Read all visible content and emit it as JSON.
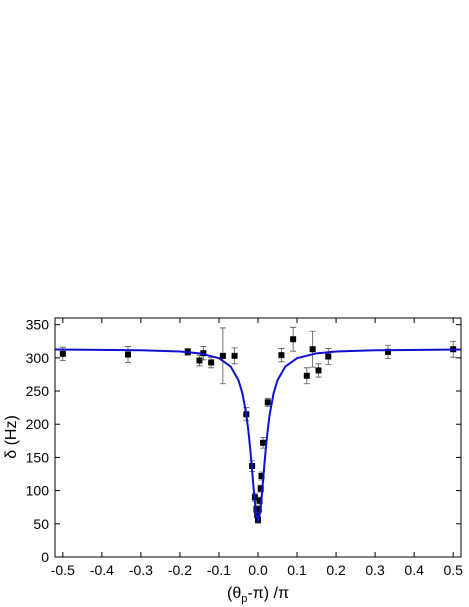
{
  "chart_data": {
    "type": "scatter",
    "xlabel": {
      "main": "(θ",
      "sub": "p",
      "rest": "-π) /π"
    },
    "ylabel": "δ (Hz)",
    "xlim": [
      -0.52,
      0.52
    ],
    "ylim": [
      0,
      360
    ],
    "xticks": [
      -0.5,
      -0.4,
      -0.3,
      -0.2,
      -0.1,
      {
        "value": 0,
        "label": "0.0"
      },
      0.1,
      0.2,
      0.3,
      0.4,
      0.5
    ],
    "yticks": [
      0,
      50,
      100,
      150,
      200,
      250,
      300,
      350
    ],
    "series": [
      {
        "type": "scatter",
        "color": "#000000",
        "x": [
          -0.5,
          -0.333,
          -0.18,
          -0.15,
          -0.14,
          -0.12,
          -0.09,
          -0.06,
          -0.03,
          -0.015,
          -0.008,
          -0.004,
          -0.002,
          0,
          0.002,
          0.004,
          0.007,
          0.009,
          0.013,
          0.025,
          0.06,
          0.09,
          0.125,
          0.14,
          0.155,
          0.18,
          0.333,
          0.5
        ],
        "values": [
          306,
          305,
          309,
          296,
          307,
          293,
          303,
          303,
          215,
          137,
          90,
          72,
          64,
          56,
          72,
          85,
          103,
          122,
          172,
          233,
          304,
          328,
          273,
          313,
          281,
          302,
          309,
          313
        ],
        "errors": [
          10,
          12,
          5,
          8,
          10,
          8,
          42,
          12,
          10,
          8,
          6,
          5,
          5,
          5,
          5,
          5,
          5,
          6,
          8,
          6,
          10,
          18,
          12,
          27,
          10,
          12,
          10,
          12
        ]
      },
      {
        "type": "line",
        "color": "#1010d0",
        "x": [
          -0.52,
          -0.3,
          -0.2,
          -0.15,
          -0.1,
          -0.07,
          -0.05,
          -0.04,
          -0.03,
          -0.025,
          -0.02,
          -0.015,
          -0.01,
          -0.005,
          0,
          0.005,
          0.01,
          0.015,
          0.02,
          0.025,
          0.03,
          0.04,
          0.05,
          0.07,
          0.1,
          0.15,
          0.2,
          0.3,
          0.52
        ],
        "values": [
          312.5,
          311.4,
          309.5,
          306.8,
          299.5,
          286.9,
          266.3,
          246.8,
          214.9,
          191.9,
          163.4,
          129.8,
          94.6,
          66.2,
          55,
          66.2,
          94.6,
          129.8,
          163.4,
          191.9,
          214.9,
          246.8,
          266.3,
          286.9,
          299.5,
          306.8,
          309.5,
          311.4,
          312.5
        ]
      }
    ]
  }
}
